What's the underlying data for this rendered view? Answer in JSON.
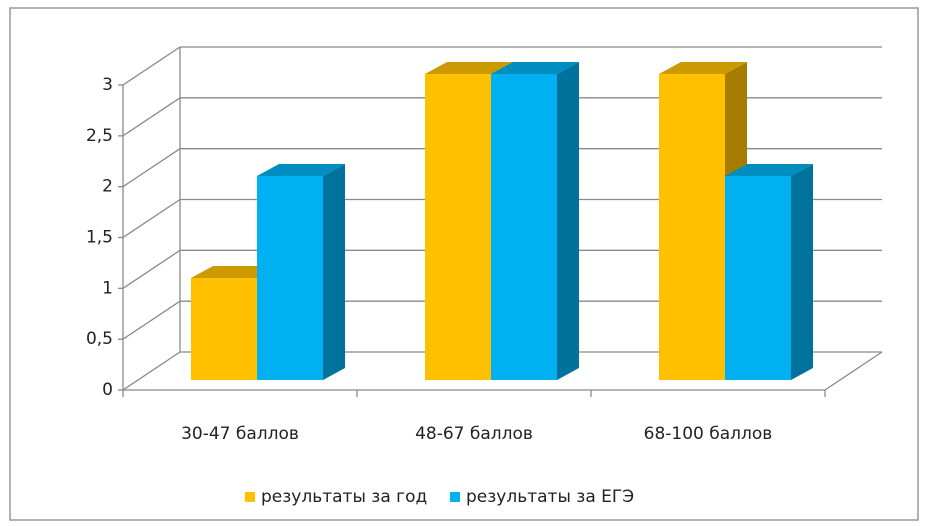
{
  "chart_data": {
    "type": "bar3d",
    "categories": [
      "30-47 баллов",
      "48-67 баллов",
      "68-100 баллов"
    ],
    "series": [
      {
        "name": "результаты за год",
        "color": "#ffc000",
        "values": [
          1,
          3,
          3
        ]
      },
      {
        "name": "результаты за ЕГЭ",
        "color": "#00b0f0",
        "values": [
          2,
          3,
          2
        ]
      }
    ],
    "ylim": [
      0,
      3
    ],
    "yticks": [
      0,
      {
        "value": 0.5,
        "label": "0,5"
      },
      1,
      {
        "value": 1.5,
        "label": "1,5"
      },
      2,
      {
        "value": 2.5,
        "label": "2,5"
      },
      3
    ],
    "grid": true,
    "legend": "bottom"
  }
}
